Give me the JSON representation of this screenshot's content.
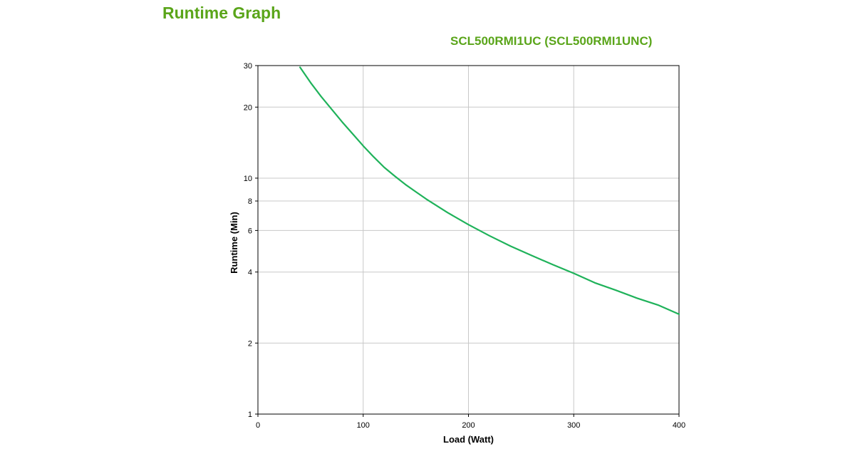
{
  "page": {
    "title": "Runtime Graph"
  },
  "chart_data": {
    "type": "line",
    "title": "SCL500RMI1UC (SCL500RMI1UNC)",
    "xlabel": "Load (Watt)",
    "ylabel": "Runtime (Min)",
    "xlim": [
      0,
      400
    ],
    "ylim": [
      1,
      30
    ],
    "yscale": "log",
    "grid": true,
    "x_ticks": [
      0,
      100,
      200,
      300,
      400
    ],
    "y_ticks": [
      1,
      2,
      4,
      6,
      8,
      10,
      20,
      30
    ],
    "line_color": "#1fb25a",
    "series": [
      {
        "x": [
          40,
          50,
          60,
          70,
          80,
          90,
          100,
          110,
          120,
          130,
          140,
          150,
          160,
          180,
          200,
          220,
          240,
          260,
          280,
          300,
          320,
          340,
          360,
          380,
          400
        ],
        "values": [
          29.5,
          25.4,
          22.2,
          19.6,
          17.3,
          15.4,
          13.7,
          12.3,
          11.1,
          10.2,
          9.4,
          8.75,
          8.15,
          7.15,
          6.35,
          5.7,
          5.15,
          4.7,
          4.3,
          3.95,
          3.6,
          3.35,
          3.1,
          2.9,
          2.65
        ]
      }
    ]
  }
}
